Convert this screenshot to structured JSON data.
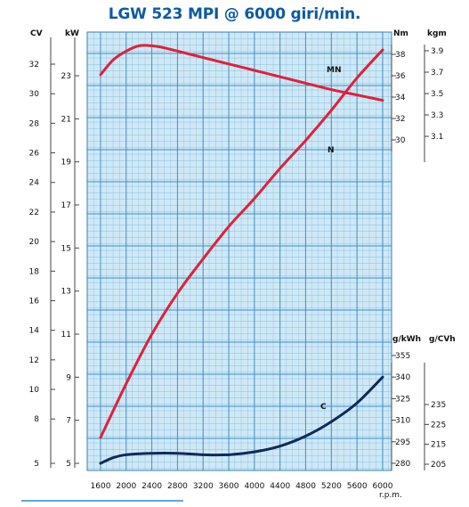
{
  "header": {
    "title": "LGW 523 MPI @ 6000 giri/min."
  },
  "chart_data": {
    "type": "line",
    "title": "LGW 523 MPI @ 6000 giri/min.",
    "xlabel": "r.p.m.",
    "xlim": [
      1600,
      6000
    ],
    "x_ticks": [
      "1600",
      "2000",
      "2400",
      "2800",
      "3200",
      "3600",
      "4000",
      "4400",
      "4800",
      "5200",
      "5600",
      "6000"
    ],
    "grid": true,
    "axes": {
      "cv": {
        "unit": "CV",
        "ticks": [
          "5",
          "8",
          "10",
          "12",
          "14",
          "16",
          "18",
          "20",
          "22",
          "24",
          "26",
          "28",
          "30",
          "32"
        ]
      },
      "kw": {
        "unit": "kW",
        "ticks": [
          "5",
          "7",
          "9",
          "11",
          "13",
          "15",
          "17",
          "19",
          "21",
          "23"
        ]
      },
      "nm": {
        "unit": "Nm",
        "ticks": [
          "30",
          "32",
          "34",
          "36",
          "38"
        ]
      },
      "kgm": {
        "unit": "kgm",
        "ticks": [
          "3.1",
          "3.3",
          "3.5",
          "3.7",
          "3.9"
        ]
      },
      "gkwh": {
        "unit": "g/kWh",
        "ticks": [
          "280",
          "295",
          "310",
          "325",
          "340",
          "355"
        ]
      },
      "gcvh": {
        "unit": "g/CVh",
        "ticks": [
          "205",
          "215",
          "225",
          "235"
        ]
      }
    },
    "series": [
      {
        "name": "MN",
        "unit": "Nm",
        "color": "#e0203a",
        "x": [
          1600,
          1800,
          2000,
          2200,
          2400,
          2600,
          3000,
          3600,
          4000,
          4400,
          4800,
          5200,
          5600,
          6000
        ],
        "y": [
          36.1,
          37.5,
          38.3,
          38.8,
          38.8,
          38.6,
          38.0,
          37.1,
          36.5,
          35.9,
          35.3,
          34.7,
          34.2,
          33.7
        ]
      },
      {
        "name": "N",
        "unit": "kW",
        "color": "#e0203a",
        "x": [
          1600,
          2000,
          2400,
          2800,
          3200,
          3600,
          4000,
          4400,
          4800,
          5200,
          5600,
          6000
        ],
        "y": [
          6.2,
          8.7,
          11.0,
          12.9,
          14.5,
          16.0,
          17.3,
          18.7,
          20.0,
          21.4,
          22.9,
          24.2
        ]
      },
      {
        "name": "C",
        "unit": "g/kWh",
        "color": "#0f2a57",
        "x": [
          1600,
          1800,
          2000,
          2400,
          2800,
          3200,
          3600,
          4000,
          4400,
          4800,
          5200,
          5600,
          6000
        ],
        "y": [
          280,
          284,
          286,
          287,
          287,
          286,
          286,
          288,
          292,
          299,
          309,
          322,
          340
        ]
      }
    ]
  }
}
